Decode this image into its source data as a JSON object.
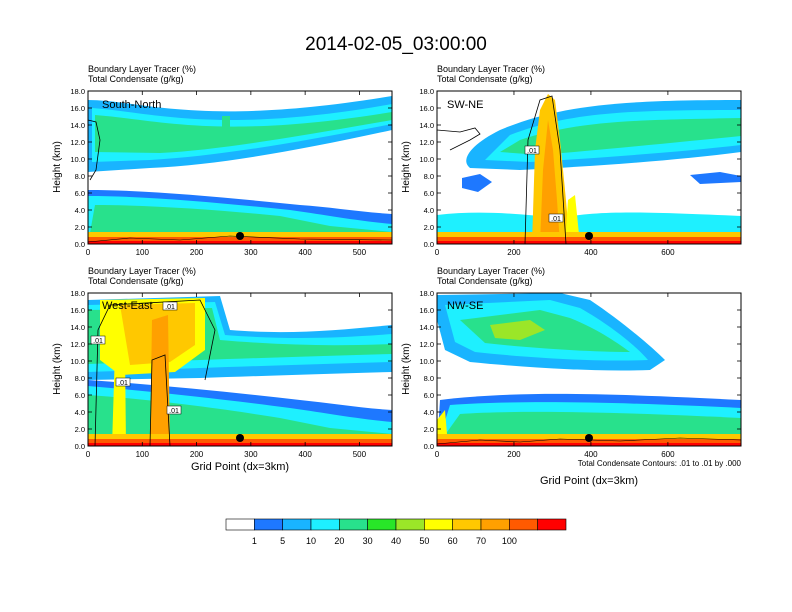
{
  "title": "2014-02-05_03:00:00",
  "footnote": "Total Condensate Contours: .01 to .01 by .000",
  "colorbar": {
    "colors": [
      "#ffffff",
      "#1e78ff",
      "#19b4ff",
      "#1ef0ff",
      "#28e18c",
      "#28e628",
      "#9be628",
      "#ffff00",
      "#ffc800",
      "#ffa000",
      "#ff5a00",
      "#ff0000"
    ],
    "labels": [
      "1",
      "5",
      "10",
      "20",
      "30",
      "40",
      "50",
      "60",
      "70",
      "100"
    ]
  },
  "chart_data": [
    {
      "type": "heatmap",
      "label": "South-North",
      "title_line1": "Boundary Layer Tracer   (%)",
      "title_line2": "Total Condensate   (g/kg)",
      "ylabel": "Height (km)",
      "xlabel": "",
      "xlim": [
        0,
        560
      ],
      "ylim": [
        0,
        18
      ],
      "xticks": [
        "0",
        "100",
        "200",
        "300",
        "400",
        "500"
      ],
      "yticks": [
        "0.0",
        "2.0",
        "4.0",
        "6.0",
        "8.0",
        "10.0",
        "12.0",
        "14.0",
        "16.0",
        "18.0"
      ],
      "marker_x": 280
    },
    {
      "type": "heatmap",
      "label": "SW-NE",
      "title_line1": "Boundary Layer Tracer   (%)",
      "title_line2": "Total Condensate   (g/kg)",
      "ylabel": "Height (km)",
      "xlabel": "",
      "xlim": [
        0,
        790
      ],
      "ylim": [
        0,
        18
      ],
      "xticks": [
        "0",
        "200",
        "400",
        "600"
      ],
      "yticks": [
        "0.0",
        "2.0",
        "4.0",
        "6.0",
        "8.0",
        "10.0",
        "12.0",
        "14.0",
        "16.0",
        "18.0"
      ],
      "marker_x": 400,
      "contour_labels": [
        ".01",
        ".01"
      ]
    },
    {
      "type": "heatmap",
      "label": "West-East",
      "title_line1": "Boundary Layer Tracer   (%)",
      "title_line2": "Total Condensate   (g/kg)",
      "ylabel": "Height (km)",
      "xlabel": "Grid Point (dx=3km)",
      "xlim": [
        0,
        560
      ],
      "ylim": [
        0,
        18
      ],
      "xticks": [
        "0",
        "100",
        "200",
        "300",
        "400",
        "500"
      ],
      "yticks": [
        "0.0",
        "2.0",
        "4.0",
        "6.0",
        "8.0",
        "10.0",
        "12.0",
        "14.0",
        "16.0",
        "18.0"
      ],
      "marker_x": 280,
      "contour_labels": [
        ".01",
        ".01",
        ".01",
        ".01"
      ]
    },
    {
      "type": "heatmap",
      "label": "NW-SE",
      "title_line1": "Boundary Layer Tracer   (%)",
      "title_line2": "Total Condensate   (g/kg)",
      "ylabel": "Height (km)",
      "xlabel": "Grid Point (dx=3km)",
      "xlim": [
        0,
        790
      ],
      "ylim": [
        0,
        18
      ],
      "xticks": [
        "0",
        "200",
        "400",
        "600"
      ],
      "yticks": [
        "0.0",
        "2.0",
        "4.0",
        "6.0",
        "8.0",
        "10.0",
        "12.0",
        "14.0",
        "16.0",
        "18.0"
      ],
      "marker_x": 400
    }
  ]
}
